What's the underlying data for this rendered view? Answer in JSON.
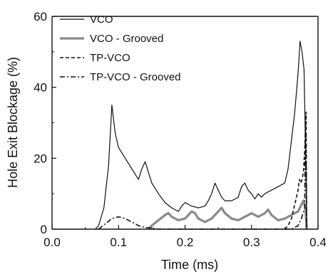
{
  "chart_data": {
    "type": "line",
    "title": "",
    "xlabel": "Time (ms)",
    "ylabel": "Hole Exit Blockage (%)",
    "xlim": [
      0.0,
      0.4
    ],
    "ylim": [
      0,
      60
    ],
    "xticks": [
      0.0,
      0.1,
      0.2,
      0.3,
      0.4
    ],
    "xtick_labels": [
      "0.0",
      "0.1",
      "0.2",
      "0.3",
      "0.4"
    ],
    "yticks": [
      0,
      20,
      40,
      60
    ],
    "ytick_labels": [
      "0",
      "20",
      "40",
      "60"
    ],
    "grid": false,
    "legend_position": "top-left",
    "series": [
      {
        "name": "VCO",
        "style": "thin-solid",
        "color": "#111111",
        "points": [
          [
            0.065,
            0
          ],
          [
            0.07,
            1
          ],
          [
            0.078,
            6
          ],
          [
            0.085,
            18
          ],
          [
            0.09,
            35
          ],
          [
            0.095,
            27
          ],
          [
            0.1,
            23
          ],
          [
            0.11,
            20
          ],
          [
            0.12,
            17
          ],
          [
            0.13,
            14
          ],
          [
            0.135,
            17
          ],
          [
            0.14,
            19
          ],
          [
            0.145,
            16
          ],
          [
            0.15,
            13
          ],
          [
            0.16,
            10
          ],
          [
            0.17,
            7.5
          ],
          [
            0.18,
            6
          ],
          [
            0.19,
            5
          ],
          [
            0.195,
            6.5
          ],
          [
            0.2,
            7.5
          ],
          [
            0.21,
            6.5
          ],
          [
            0.22,
            6
          ],
          [
            0.23,
            6.5
          ],
          [
            0.235,
            8
          ],
          [
            0.24,
            10
          ],
          [
            0.245,
            13
          ],
          [
            0.25,
            11
          ],
          [
            0.255,
            9
          ],
          [
            0.26,
            8
          ],
          [
            0.27,
            8
          ],
          [
            0.28,
            9
          ],
          [
            0.285,
            12
          ],
          [
            0.29,
            13
          ],
          [
            0.295,
            11
          ],
          [
            0.3,
            10
          ],
          [
            0.305,
            8.5
          ],
          [
            0.31,
            10
          ],
          [
            0.315,
            9
          ],
          [
            0.32,
            10
          ],
          [
            0.33,
            11
          ],
          [
            0.34,
            12
          ],
          [
            0.35,
            13
          ],
          [
            0.355,
            17
          ],
          [
            0.36,
            25
          ],
          [
            0.365,
            33
          ],
          [
            0.37,
            44
          ],
          [
            0.373,
            53
          ],
          [
            0.376,
            50
          ],
          [
            0.379,
            45
          ],
          [
            0.381,
            25
          ],
          [
            0.383,
            0
          ]
        ]
      },
      {
        "name": "VCO - Grooved",
        "style": "thick-solid",
        "color": "#8a8a8a",
        "points": [
          [
            0.145,
            0
          ],
          [
            0.15,
            1
          ],
          [
            0.16,
            2.5
          ],
          [
            0.17,
            4
          ],
          [
            0.175,
            4.5
          ],
          [
            0.18,
            3.5
          ],
          [
            0.19,
            2.5
          ],
          [
            0.2,
            3
          ],
          [
            0.21,
            5
          ],
          [
            0.215,
            4.5
          ],
          [
            0.22,
            3
          ],
          [
            0.23,
            2
          ],
          [
            0.24,
            3
          ],
          [
            0.25,
            5
          ],
          [
            0.255,
            6
          ],
          [
            0.26,
            4.5
          ],
          [
            0.27,
            3
          ],
          [
            0.28,
            2.5
          ],
          [
            0.29,
            3.5
          ],
          [
            0.3,
            4.5
          ],
          [
            0.31,
            3.5
          ],
          [
            0.32,
            4.5
          ],
          [
            0.325,
            5.5
          ],
          [
            0.33,
            4
          ],
          [
            0.34,
            2.5
          ],
          [
            0.35,
            3
          ],
          [
            0.36,
            4
          ],
          [
            0.37,
            5
          ],
          [
            0.378,
            8
          ],
          [
            0.381,
            6
          ],
          [
            0.383,
            0
          ]
        ]
      },
      {
        "name": "TP-VCO",
        "style": "dashed",
        "color": "#111111",
        "points": [
          [
            0.35,
            0
          ],
          [
            0.355,
            1
          ],
          [
            0.36,
            3
          ],
          [
            0.365,
            7
          ],
          [
            0.37,
            11
          ],
          [
            0.372,
            14
          ],
          [
            0.374,
            13
          ],
          [
            0.376,
            14
          ],
          [
            0.378,
            16
          ],
          [
            0.38,
            22
          ],
          [
            0.381,
            28
          ],
          [
            0.382,
            33
          ],
          [
            0.383,
            0
          ]
        ]
      },
      {
        "name": "TP-VCO - Grooved",
        "style": "dash-dot",
        "color": "#111111",
        "points": [
          [
            0.07,
            0
          ],
          [
            0.08,
            1.5
          ],
          [
            0.09,
            3
          ],
          [
            0.1,
            3.5
          ],
          [
            0.11,
            3
          ],
          [
            0.12,
            2
          ],
          [
            0.13,
            1
          ],
          [
            0.14,
            0.5
          ],
          [
            0.15,
            0.3
          ],
          [
            0.16,
            0
          ],
          [
            0.36,
            0
          ],
          [
            0.37,
            1
          ],
          [
            0.375,
            3
          ],
          [
            0.38,
            6
          ],
          [
            0.381,
            30
          ],
          [
            0.382,
            28
          ],
          [
            0.383,
            0
          ]
        ]
      }
    ]
  }
}
